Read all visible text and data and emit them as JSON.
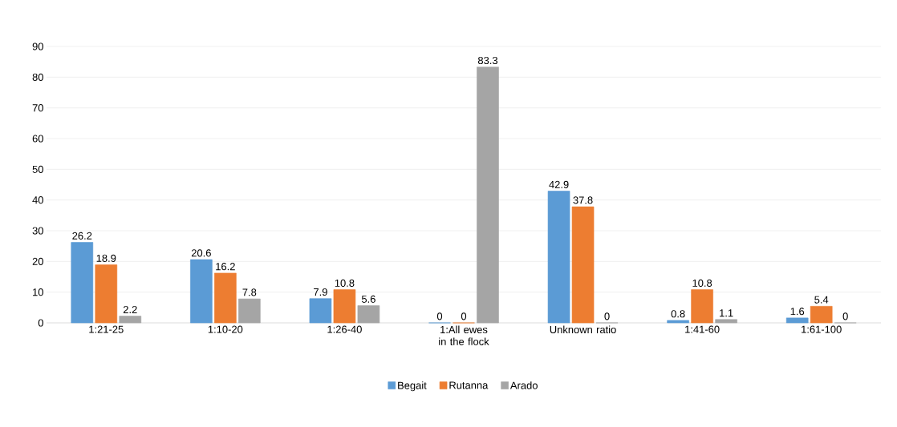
{
  "chart_data": {
    "type": "bar",
    "categories": [
      "1:21-25",
      "1:10-20",
      "1:26-40",
      "1:All ewes in the flock",
      "Unknown ratio",
      "1:41-60",
      "1:61-100"
    ],
    "series": [
      {
        "name": "Begait",
        "color": "#5b9bd5",
        "values": [
          26.2,
          20.6,
          7.9,
          0,
          42.9,
          0.8,
          1.6
        ]
      },
      {
        "name": "Rutanna",
        "color": "#ed7d31",
        "values": [
          18.9,
          16.2,
          10.8,
          0,
          37.8,
          10.8,
          5.4
        ]
      },
      {
        "name": "Arado",
        "color": "#a5a5a5",
        "values": [
          2.2,
          7.8,
          5.6,
          83.3,
          0,
          1.1,
          0
        ]
      }
    ],
    "ylim": [
      0,
      90
    ],
    "yticks": [
      0,
      10,
      20,
      30,
      40,
      50,
      60,
      70,
      80,
      90
    ],
    "grid": "y",
    "legend": "bottom",
    "data_labels": true
  }
}
